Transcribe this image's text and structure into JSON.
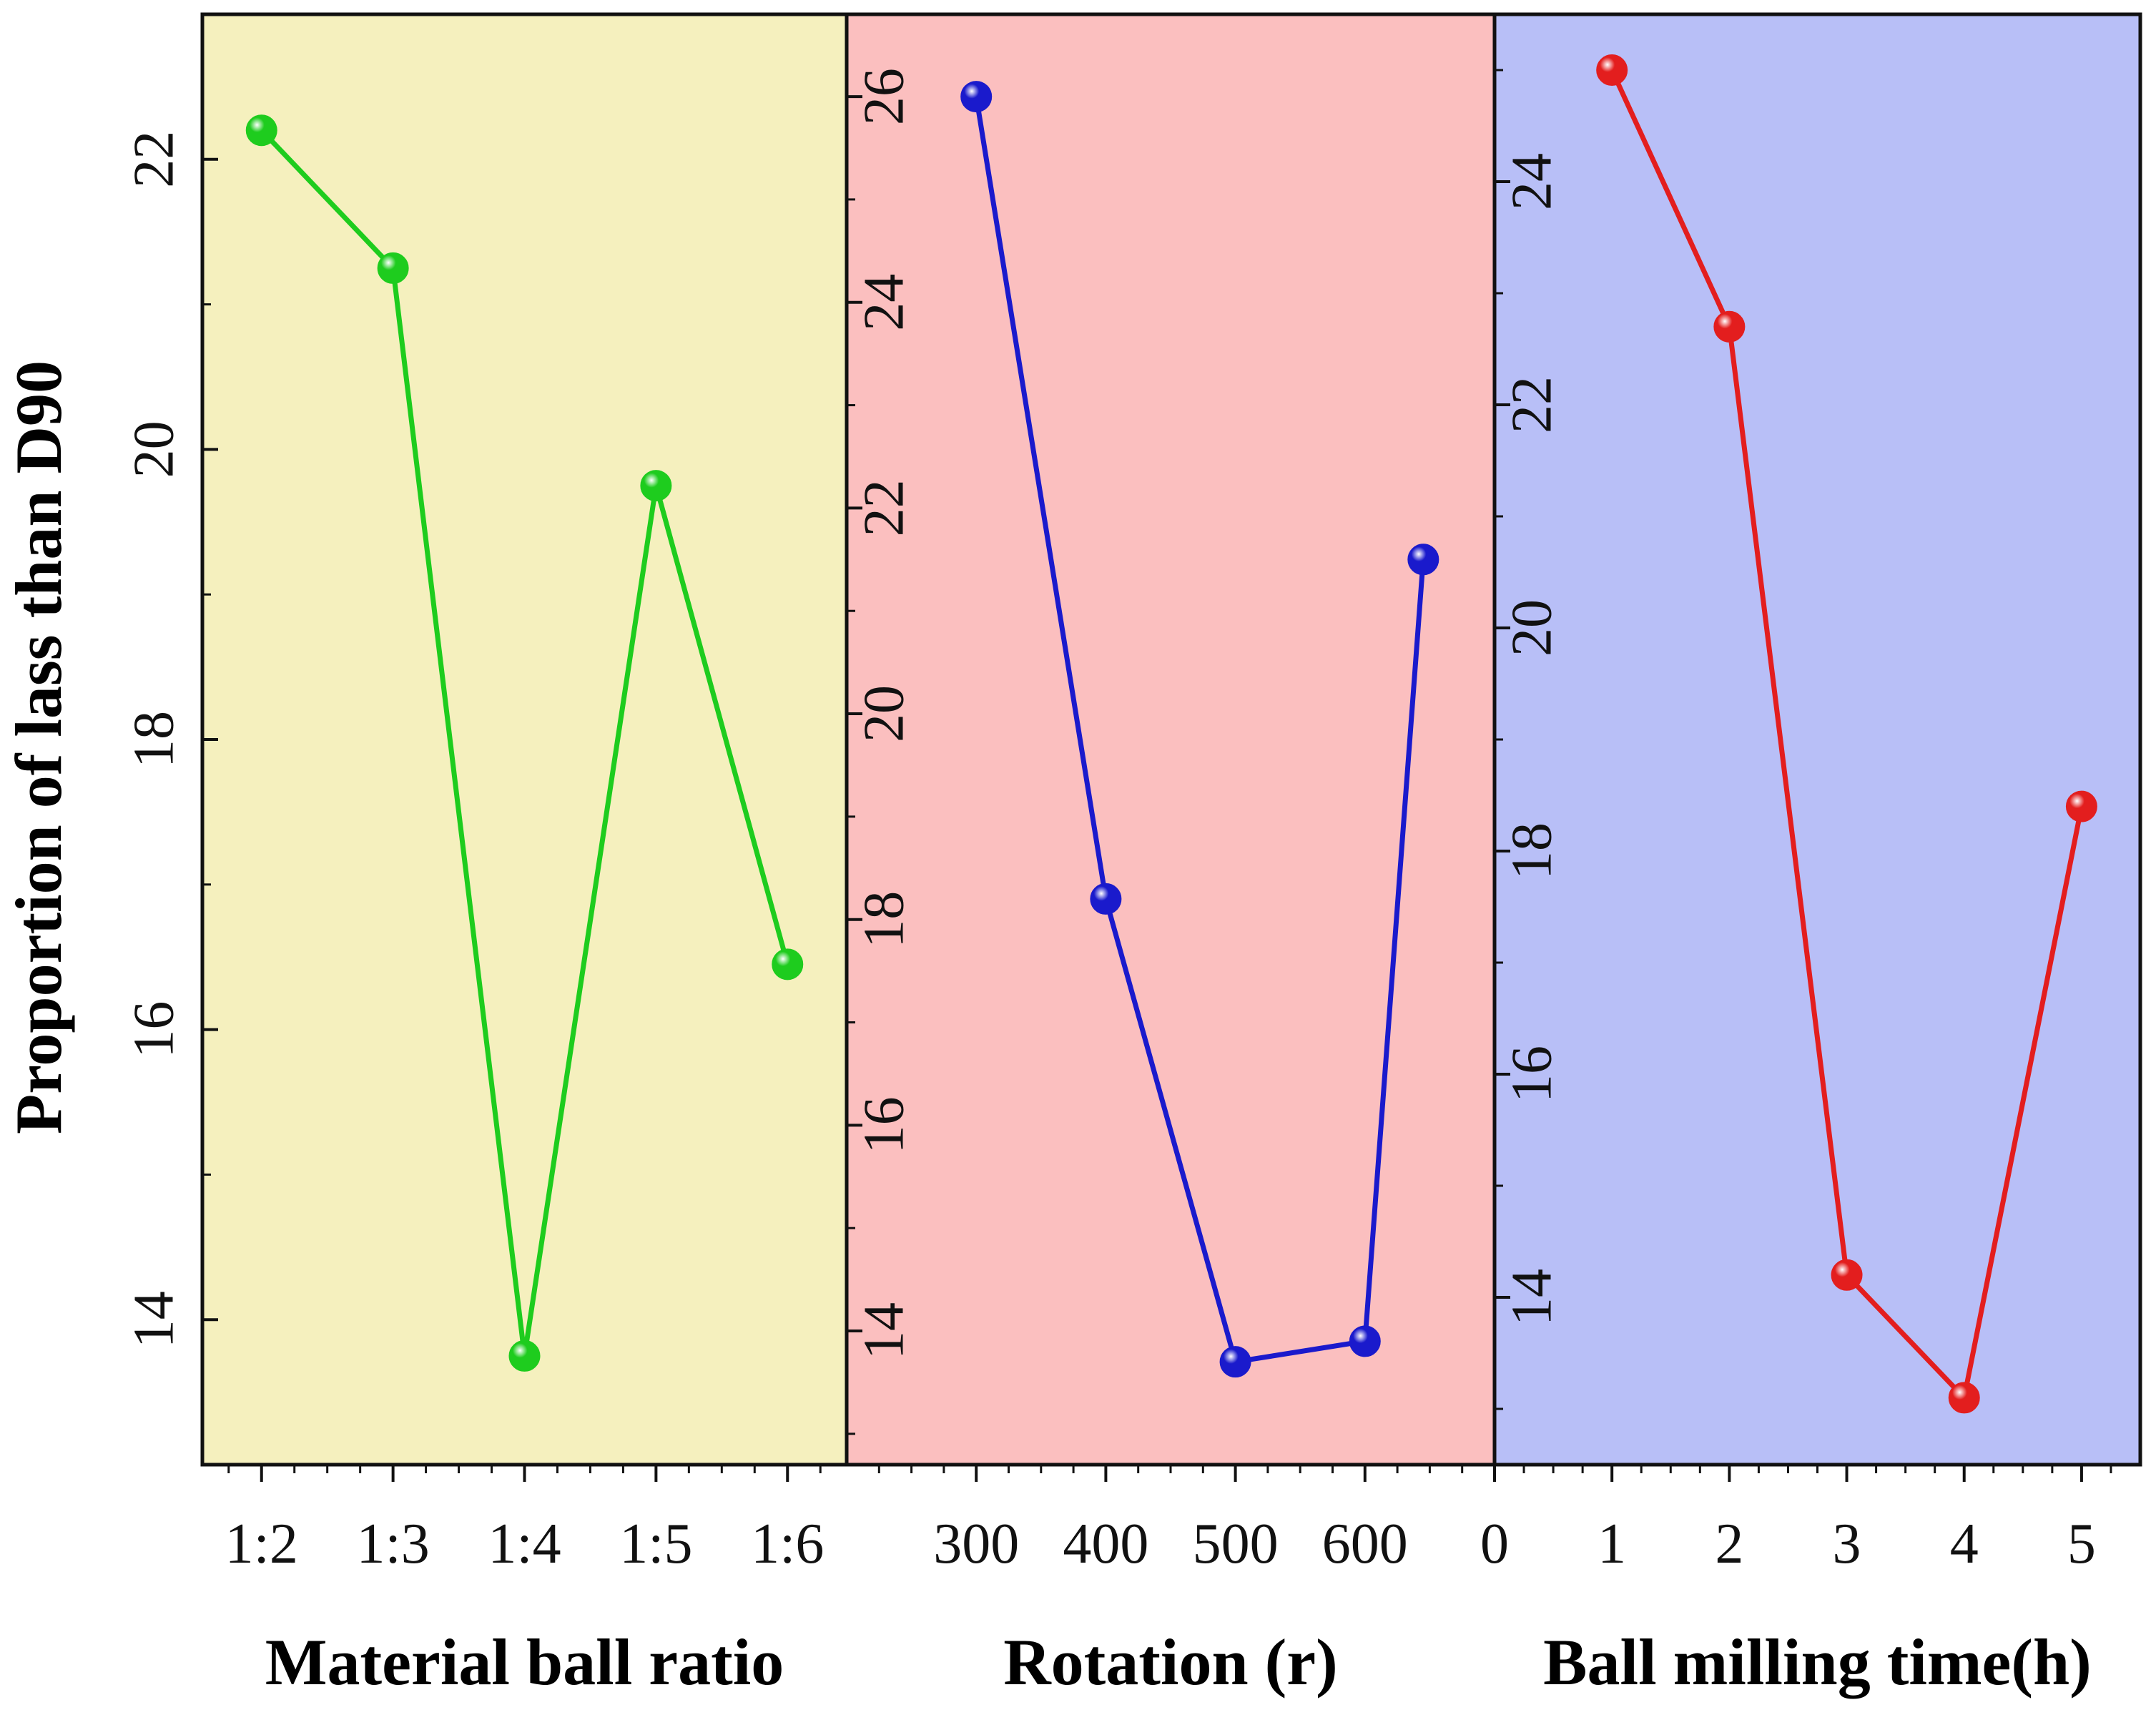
{
  "chart_data": {
    "type": "line",
    "ylabel": "Proportion of lass than D90",
    "panels": [
      {
        "name": "material-ball-ratio",
        "xlabel": "Material ball ratio",
        "background": "#f5f0be",
        "color": "#1ecc1e",
        "x_type": "category",
        "categories": [
          "1:2",
          "1:3",
          "1:4",
          "1:5",
          "1:6"
        ],
        "values": [
          22.2,
          21.25,
          13.75,
          19.75,
          16.45
        ],
        "ylim": [
          13,
          23
        ],
        "yticks": [
          14,
          16,
          18,
          20,
          22
        ],
        "xtick_labels": [
          "1:2",
          "1:3",
          "1:4",
          "1:5",
          "1:6"
        ]
      },
      {
        "name": "rotation",
        "xlabel": "Rotation (r)",
        "background": "#fbbfbf",
        "color": "#1a1acc",
        "x_type": "numeric",
        "xlim": [
          200,
          700
        ],
        "x": [
          300,
          400,
          500,
          600,
          645
        ],
        "values": [
          26.0,
          18.2,
          13.7,
          13.9,
          21.5
        ],
        "ylim": [
          12.7,
          26.8
        ],
        "yticks": [
          14,
          16,
          18,
          20,
          22,
          24,
          26
        ],
        "xticks": [
          300,
          400,
          500,
          600
        ],
        "xtick_labels": [
          "300",
          "400",
          "500",
          "600"
        ]
      },
      {
        "name": "ball-milling-time",
        "xlabel": "Ball milling time(h)",
        "background": "#b8bff7",
        "color": "#e31e1e",
        "x_type": "numeric",
        "xlim": [
          0,
          5.5
        ],
        "x": [
          1,
          2,
          3,
          4,
          5
        ],
        "values": [
          25.0,
          22.7,
          14.2,
          13.1,
          18.4
        ],
        "ylim": [
          12.5,
          25.5
        ],
        "yticks": [
          14,
          16,
          18,
          20,
          22,
          24
        ],
        "xticks": [
          0,
          1,
          2,
          3,
          4,
          5
        ],
        "xtick_labels": [
          "0",
          "1",
          "2",
          "3",
          "4",
          "5"
        ]
      }
    ]
  }
}
